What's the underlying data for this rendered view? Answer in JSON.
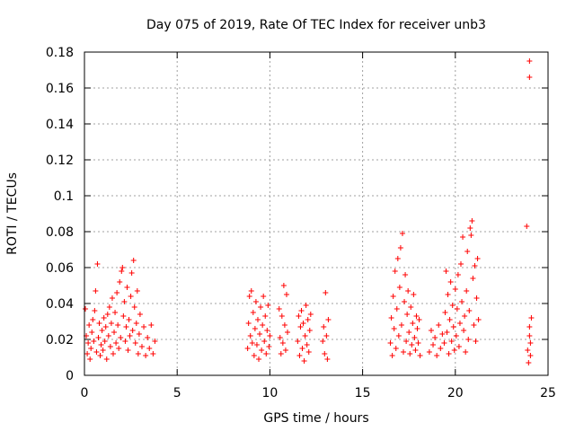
{
  "chart_data": {
    "type": "scatter",
    "title": "Day 075 of 2019, Rate Of TEC Index for receiver unb3",
    "xlabel": "GPS time / hours",
    "ylabel": "ROTI / TECUs",
    "xlim": [
      0,
      25
    ],
    "ylim": [
      0,
      0.18
    ],
    "xticks": [
      0,
      5,
      10,
      15,
      20,
      25
    ],
    "xtick_labels": [
      "0",
      "5",
      "10",
      "15",
      "20",
      "25"
    ],
    "yticks": [
      0,
      0.02,
      0.04,
      0.06,
      0.08,
      0.1,
      0.12,
      0.14,
      0.16,
      0.18
    ],
    "ytick_labels": [
      "0",
      "0.02",
      "0.04",
      "0.06",
      "0.08",
      "0.1",
      "0.12",
      "0.14",
      "0.16",
      "0.18"
    ],
    "grid": true,
    "marker": "+",
    "color": "#ff0000",
    "series": [
      {
        "name": "ROTI",
        "points": [
          [
            0.05,
            0.037
          ],
          [
            0.1,
            0.022
          ],
          [
            0.15,
            0.012
          ],
          [
            0.2,
            0.018
          ],
          [
            0.25,
            0.028
          ],
          [
            0.3,
            0.009
          ],
          [
            0.35,
            0.015
          ],
          [
            0.4,
            0.024
          ],
          [
            0.45,
            0.031
          ],
          [
            0.5,
            0.019
          ],
          [
            0.55,
            0.036
          ],
          [
            0.6,
            0.047
          ],
          [
            0.65,
            0.013
          ],
          [
            0.7,
            0.062
          ],
          [
            0.75,
            0.021
          ],
          [
            0.8,
            0.029
          ],
          [
            0.85,
            0.011
          ],
          [
            0.9,
            0.017
          ],
          [
            0.95,
            0.025
          ],
          [
            1.0,
            0.014
          ],
          [
            1.05,
            0.032
          ],
          [
            1.1,
            0.019
          ],
          [
            1.15,
            0.027
          ],
          [
            1.2,
            0.009
          ],
          [
            1.25,
            0.034
          ],
          [
            1.3,
            0.022
          ],
          [
            1.35,
            0.038
          ],
          [
            1.4,
            0.016
          ],
          [
            1.45,
            0.029
          ],
          [
            1.5,
            0.043
          ],
          [
            1.55,
            0.012
          ],
          [
            1.6,
            0.024
          ],
          [
            1.65,
            0.035
          ],
          [
            1.7,
            0.018
          ],
          [
            1.75,
            0.046
          ],
          [
            1.8,
            0.028
          ],
          [
            1.85,
            0.015
          ],
          [
            1.9,
            0.052
          ],
          [
            1.95,
            0.021
          ],
          [
            2.0,
            0.058
          ],
          [
            2.05,
            0.06
          ],
          [
            2.1,
            0.033
          ],
          [
            2.15,
            0.041
          ],
          [
            2.2,
            0.019
          ],
          [
            2.25,
            0.027
          ],
          [
            2.3,
            0.049
          ],
          [
            2.35,
            0.014
          ],
          [
            2.4,
            0.031
          ],
          [
            2.45,
            0.022
          ],
          [
            2.5,
            0.044
          ],
          [
            2.55,
            0.057
          ],
          [
            2.6,
            0.025
          ],
          [
            2.65,
            0.064
          ],
          [
            2.7,
            0.038
          ],
          [
            2.75,
            0.018
          ],
          [
            2.8,
            0.029
          ],
          [
            2.85,
            0.047
          ],
          [
            2.9,
            0.012
          ],
          [
            2.95,
            0.023
          ],
          [
            3.0,
            0.034
          ],
          [
            3.1,
            0.016
          ],
          [
            3.2,
            0.027
          ],
          [
            3.3,
            0.011
          ],
          [
            3.4,
            0.021
          ],
          [
            3.5,
            0.015
          ],
          [
            3.6,
            0.028
          ],
          [
            3.7,
            0.012
          ],
          [
            3.8,
            0.019
          ],
          [
            8.8,
            0.015
          ],
          [
            8.85,
            0.029
          ],
          [
            8.9,
            0.044
          ],
          [
            8.95,
            0.022
          ],
          [
            9.0,
            0.047
          ],
          [
            9.05,
            0.018
          ],
          [
            9.1,
            0.035
          ],
          [
            9.15,
            0.011
          ],
          [
            9.2,
            0.026
          ],
          [
            9.25,
            0.041
          ],
          [
            9.3,
            0.017
          ],
          [
            9.35,
            0.031
          ],
          [
            9.4,
            0.009
          ],
          [
            9.45,
            0.023
          ],
          [
            9.5,
            0.038
          ],
          [
            9.55,
            0.014
          ],
          [
            9.6,
            0.028
          ],
          [
            9.65,
            0.044
          ],
          [
            9.7,
            0.019
          ],
          [
            9.75,
            0.033
          ],
          [
            9.8,
            0.012
          ],
          [
            9.85,
            0.025
          ],
          [
            9.9,
            0.039
          ],
          [
            9.95,
            0.016
          ],
          [
            10.0,
            0.022
          ],
          [
            10.5,
            0.037
          ],
          [
            10.55,
            0.021
          ],
          [
            10.6,
            0.012
          ],
          [
            10.65,
            0.033
          ],
          [
            10.7,
            0.018
          ],
          [
            10.75,
            0.05
          ],
          [
            10.8,
            0.028
          ],
          [
            10.85,
            0.014
          ],
          [
            10.9,
            0.045
          ],
          [
            10.95,
            0.024
          ],
          [
            11.5,
            0.019
          ],
          [
            11.55,
            0.033
          ],
          [
            11.6,
            0.011
          ],
          [
            11.65,
            0.027
          ],
          [
            11.7,
            0.036
          ],
          [
            11.75,
            0.015
          ],
          [
            11.8,
            0.029
          ],
          [
            11.85,
            0.008
          ],
          [
            11.9,
            0.022
          ],
          [
            11.95,
            0.039
          ],
          [
            12.0,
            0.017
          ],
          [
            12.05,
            0.031
          ],
          [
            12.1,
            0.013
          ],
          [
            12.15,
            0.025
          ],
          [
            12.2,
            0.034
          ],
          [
            12.85,
            0.019
          ],
          [
            12.9,
            0.027
          ],
          [
            12.95,
            0.012
          ],
          [
            13.0,
            0.046
          ],
          [
            13.05,
            0.022
          ],
          [
            13.1,
            0.009
          ],
          [
            13.15,
            0.031
          ],
          [
            16.5,
            0.018
          ],
          [
            16.55,
            0.032
          ],
          [
            16.6,
            0.011
          ],
          [
            16.65,
            0.044
          ],
          [
            16.7,
            0.026
          ],
          [
            16.75,
            0.058
          ],
          [
            16.8,
            0.015
          ],
          [
            16.85,
            0.037
          ],
          [
            16.9,
            0.065
          ],
          [
            16.95,
            0.022
          ],
          [
            17.0,
            0.049
          ],
          [
            17.05,
            0.071
          ],
          [
            17.1,
            0.028
          ],
          [
            17.15,
            0.079
          ],
          [
            17.2,
            0.013
          ],
          [
            17.25,
            0.041
          ],
          [
            17.3,
            0.056
          ],
          [
            17.35,
            0.019
          ],
          [
            17.4,
            0.034
          ],
          [
            17.45,
            0.047
          ],
          [
            17.5,
            0.024
          ],
          [
            17.55,
            0.012
          ],
          [
            17.6,
            0.038
          ],
          [
            17.65,
            0.017
          ],
          [
            17.7,
            0.029
          ],
          [
            17.75,
            0.045
          ],
          [
            17.8,
            0.021
          ],
          [
            17.85,
            0.014
          ],
          [
            17.9,
            0.033
          ],
          [
            17.95,
            0.026
          ],
          [
            18.0,
            0.018
          ],
          [
            18.05,
            0.031
          ],
          [
            18.1,
            0.011
          ],
          [
            18.6,
            0.013
          ],
          [
            18.7,
            0.025
          ],
          [
            18.8,
            0.017
          ],
          [
            18.9,
            0.021
          ],
          [
            19.0,
            0.011
          ],
          [
            19.1,
            0.028
          ],
          [
            19.2,
            0.015
          ],
          [
            19.3,
            0.023
          ],
          [
            19.4,
            0.018
          ],
          [
            19.45,
            0.035
          ],
          [
            19.5,
            0.058
          ],
          [
            19.55,
            0.024
          ],
          [
            19.6,
            0.045
          ],
          [
            19.65,
            0.012
          ],
          [
            19.7,
            0.031
          ],
          [
            19.75,
            0.052
          ],
          [
            19.8,
            0.019
          ],
          [
            19.85,
            0.039
          ],
          [
            19.9,
            0.027
          ],
          [
            19.95,
            0.014
          ],
          [
            20.0,
            0.048
          ],
          [
            20.05,
            0.022
          ],
          [
            20.1,
            0.037
          ],
          [
            20.15,
            0.056
          ],
          [
            20.2,
            0.016
          ],
          [
            20.25,
            0.029
          ],
          [
            20.3,
            0.062
          ],
          [
            20.35,
            0.041
          ],
          [
            20.4,
            0.077
          ],
          [
            20.45,
            0.025
          ],
          [
            20.5,
            0.033
          ],
          [
            20.55,
            0.013
          ],
          [
            20.6,
            0.047
          ],
          [
            20.65,
            0.069
          ],
          [
            20.7,
            0.02
          ],
          [
            20.75,
            0.036
          ],
          [
            20.8,
            0.082
          ],
          [
            20.85,
            0.078
          ],
          [
            20.9,
            0.086
          ],
          [
            20.95,
            0.054
          ],
          [
            21.0,
            0.028
          ],
          [
            21.05,
            0.061
          ],
          [
            21.1,
            0.019
          ],
          [
            21.15,
            0.043
          ],
          [
            21.2,
            0.065
          ],
          [
            21.25,
            0.031
          ],
          [
            23.85,
            0.083
          ],
          [
            23.9,
            0.014
          ],
          [
            23.95,
            0.007
          ],
          [
            24.0,
            0.027
          ],
          [
            24.0,
            0.166
          ],
          [
            24.05,
            0.018
          ],
          [
            24.0,
            0.175
          ],
          [
            24.1,
            0.032
          ],
          [
            24.05,
            0.011
          ],
          [
            24.0,
            0.022
          ]
        ]
      }
    ]
  }
}
